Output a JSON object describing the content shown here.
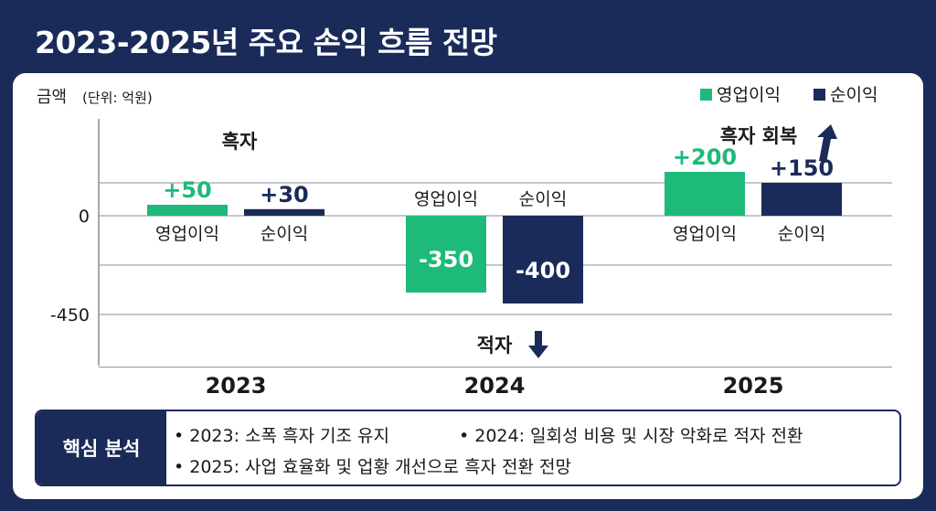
{
  "title": "2023-2025년 주요 손익 흐름 전망",
  "chart_data": {
    "type": "bar",
    "ylabel": "금액",
    "yunit": "(단위: 억원)",
    "categories": [
      "2023",
      "2024",
      "2025"
    ],
    "series": [
      {
        "name": "영업이익",
        "color": "#1dba7a",
        "values": [
          50,
          -350,
          200
        ],
        "labels": [
          "+50",
          "-350",
          "+200"
        ]
      },
      {
        "name": "순이익",
        "color": "#1a2b5a",
        "values": [
          30,
          -400,
          150
        ],
        "labels": [
          "+30",
          "-400",
          "+150"
        ]
      }
    ],
    "yticks": [
      0,
      -450
    ],
    "ytick_labels": [
      "0",
      "-450"
    ],
    "ylim": [
      -560,
      360
    ],
    "bar_labels": [
      [
        "영업이익",
        "순이익"
      ],
      [
        "영업이익",
        "순이익"
      ],
      [
        "영업이익",
        "순이익"
      ]
    ],
    "annotations": [
      {
        "text": "흑자",
        "category": "2023",
        "arrow": "none"
      },
      {
        "text": "적자",
        "category": "2024",
        "arrow": "down"
      },
      {
        "text": "흑자 회복",
        "category": "2025",
        "arrow": "up"
      }
    ],
    "legend": "top-right",
    "grid": true
  },
  "analysis": {
    "label": "핵심 분석",
    "bullets": [
      "• 2023: 소폭 흑자 기조 유지",
      "• 2024: 일회성 비용 및 시장 악화로 적자 전환",
      "• 2025: 사업 효율화 및 업황 개선으로 흑자 전환 전망"
    ]
  }
}
